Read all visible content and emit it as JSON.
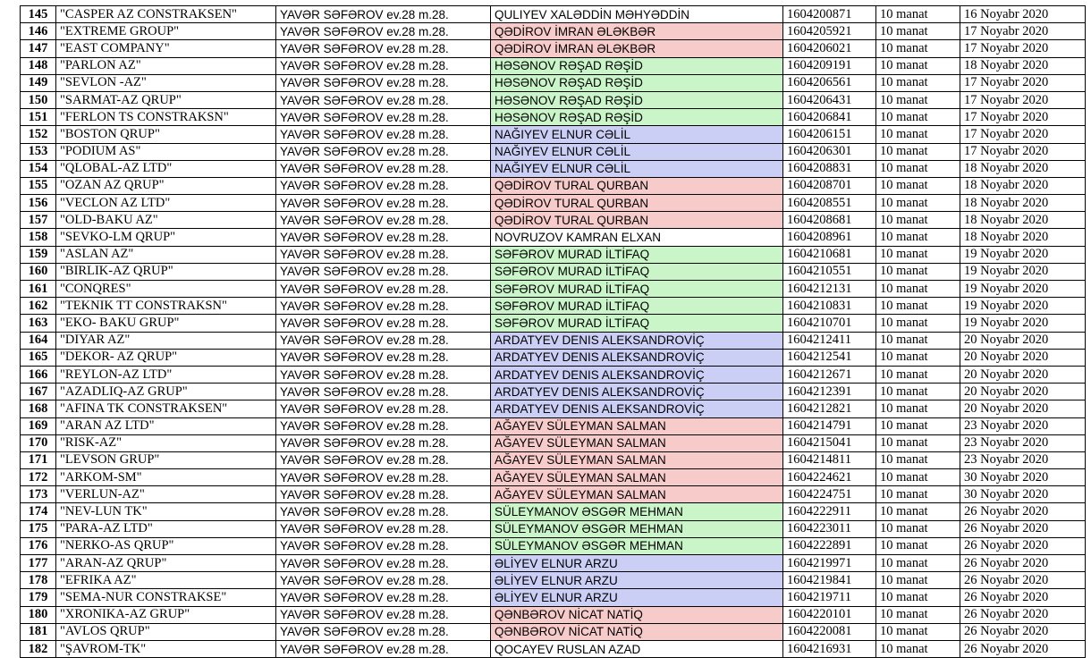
{
  "colors": {
    "red": "#f8cbcb",
    "green": "#c9f5c9",
    "blue": "#cccff5",
    "white": "#ffffff"
  },
  "rows": [
    {
      "n": "145",
      "company": "\"CASPER AZ CONSTRAKSEN\"",
      "address": "YAVƏR SƏFƏROV ev.28 m.28.",
      "person": "QULIYEV XALƏDDİN MƏHYƏDDİN",
      "code": "1604200871",
      "fee": "10 manat",
      "date": "16 Noyabr 2020",
      "color": "white"
    },
    {
      "n": "146",
      "company": "\"EXTREME GROUP\"",
      "address": "YAVƏR SƏFƏROV ev.28 m.28.",
      "person": "QƏDİROV İMRAN ƏLƏKBƏR",
      "code": "1604205921",
      "fee": "10 manat",
      "date": "17 Noyabr 2020",
      "color": "red"
    },
    {
      "n": "147",
      "company": "\"EAST COMPANY\"",
      "address": "YAVƏR SƏFƏROV ev.28 m.28.",
      "person": "QƏDİROV İMRAN ƏLƏKBƏR",
      "code": "1604206021",
      "fee": "10 manat",
      "date": "17 Noyabr 2020",
      "color": "red"
    },
    {
      "n": "148",
      "company": "\"PARLON AZ\"",
      "address": "YAVƏR SƏFƏROV ev.28 m.28.",
      "person": "HƏSƏNOV RƏŞAD RƏŞİD",
      "code": "1604209191",
      "fee": "10 manat",
      "date": "18 Noyabr 2020",
      "color": "green"
    },
    {
      "n": "149",
      "company": "\"SEVLON -AZ\"",
      "address": "YAVƏR SƏFƏROV ev.28 m.28.",
      "person": "HƏSƏNOV RƏŞAD RƏŞİD",
      "code": "1604206561",
      "fee": "10 manat",
      "date": "17 Noyabr 2020",
      "color": "green"
    },
    {
      "n": "150",
      "company": "\"SARMAT-AZ QRUP\"",
      "address": "YAVƏR SƏFƏROV ev.28 m.28.",
      "person": "HƏSƏNOV RƏŞAD RƏŞİD",
      "code": "1604206431",
      "fee": "10 manat",
      "date": "17 Noyabr 2020",
      "color": "green"
    },
    {
      "n": "151",
      "company": "\"FERLON TS CONSTRAKSN\"",
      "address": "YAVƏR SƏFƏROV ev.28 m.28.",
      "person": "HƏSƏNOV RƏŞAD RƏŞİD",
      "code": "1604206841",
      "fee": "10 manat",
      "date": "17 Noyabr 2020",
      "color": "green"
    },
    {
      "n": "152",
      "company": "\"BOSTON QRUP\"",
      "address": "YAVƏR SƏFƏROV ev.28 m.28.",
      "person": "NAĞIYEV ELNUR CƏLİL",
      "code": "1604206151",
      "fee": "10 manat",
      "date": "17 Noyabr 2020",
      "color": "blue"
    },
    {
      "n": "153",
      "company": "\"PODIUM AS\"",
      "address": "YAVƏR SƏFƏROV ev.28 m.28.",
      "person": "NAĞIYEV ELNUR CƏLİL",
      "code": "1604206301",
      "fee": "10 manat",
      "date": "17 Noyabr 2020",
      "color": "blue"
    },
    {
      "n": "154",
      "company": "\"QLOBAL-AZ LTD\"",
      "address": "YAVƏR SƏFƏROV ev.28 m.28.",
      "person": "NAĞIYEV ELNUR CƏLİL",
      "code": "1604208831",
      "fee": "10 manat",
      "date": "18 Noyabr 2020",
      "color": "blue"
    },
    {
      "n": "155",
      "company": "\"OZAN AZ QRUP\"",
      "address": "YAVƏR SƏFƏROV ev.28 m.28.",
      "person": "QƏDİROV TURAL QURBAN",
      "code": "1604208701",
      "fee": "10 manat",
      "date": "18 Noyabr 2020",
      "color": "red"
    },
    {
      "n": "156",
      "company": "\"VECLON AZ LTD\"",
      "address": "YAVƏR SƏFƏROV ev.28 m.28.",
      "person": "QƏDİROV TURAL QURBAN",
      "code": "1604208551",
      "fee": "10 manat",
      "date": "18 Noyabr 2020",
      "color": "red"
    },
    {
      "n": "157",
      "company": "\"OLD-BAKU AZ\"",
      "address": "YAVƏR SƏFƏROV ev.28 m.28.",
      "person": "QƏDİROV TURAL QURBAN",
      "code": "1604208681",
      "fee": "10 manat",
      "date": "18 Noyabr 2020",
      "color": "red"
    },
    {
      "n": "158",
      "company": "\"SEVKO-LM QRUP\"",
      "address": "YAVƏR SƏFƏROV ev.28 m.28.",
      "person": "NOVRUZOV KAMRAN ELXAN",
      "code": "1604208961",
      "fee": "10 manat",
      "date": "18 Noyabr 2020",
      "color": "white"
    },
    {
      "n": "159",
      "company": "\"ASLAN AZ\"",
      "address": "YAVƏR SƏFƏROV ev.28 m.28.",
      "person": "SƏFƏROV MURAD İLTİFAQ",
      "code": "1604210681",
      "fee": "10 manat",
      "date": "19 Noyabr 2020",
      "color": "green"
    },
    {
      "n": "160",
      "company": "\"BIRLIK-AZ QRUP\"",
      "address": "YAVƏR SƏFƏROV ev.28 m.28.",
      "person": "SƏFƏROV MURAD İLTİFAQ",
      "code": "1604210551",
      "fee": "10 manat",
      "date": "19 Noyabr 2020",
      "color": "green"
    },
    {
      "n": "161",
      "company": "\"CONQRES\"",
      "address": "YAVƏR SƏFƏROV ev.28 m.28.",
      "person": "SƏFƏROV MURAD İLTİFAQ",
      "code": "1604212131",
      "fee": "10 manat",
      "date": "19 Noyabr 2020",
      "color": "green"
    },
    {
      "n": "162",
      "company": "\"TEKNIK TT CONSTRAKSN\"",
      "address": "YAVƏR SƏFƏROV ev.28 m.28.",
      "person": "SƏFƏROV MURAD İLTİFAQ",
      "code": "1604210831",
      "fee": "10 manat",
      "date": "19 Noyabr 2020",
      "color": "green"
    },
    {
      "n": "163",
      "company": "\"EKO- BAKU GRUP\"",
      "address": "YAVƏR SƏFƏROV ev.28 m.28.",
      "person": "SƏFƏROV MURAD İLTİFAQ",
      "code": "1604210701",
      "fee": "10 manat",
      "date": "19 Noyabr 2020",
      "color": "green"
    },
    {
      "n": "164",
      "company": "\"DIYAR AZ\"",
      "address": "YAVƏR SƏFƏROV ev.28 m.28.",
      "person": "ARDATYEV DENIS ALEKSANDROVİÇ",
      "code": "1604212411",
      "fee": "10 manat",
      "date": "20 Noyabr 2020",
      "color": "blue"
    },
    {
      "n": "165",
      "company": "\"DEKOR- AZ QRUP\"",
      "address": "YAVƏR SƏFƏROV ev.28 m.28.",
      "person": "ARDATYEV DENIS ALEKSANDROVİÇ",
      "code": "1604212541",
      "fee": "10 manat",
      "date": "20 Noyabr 2020",
      "color": "blue"
    },
    {
      "n": "166",
      "company": "\"REYLON-AZ LTD\"",
      "address": "YAVƏR SƏFƏROV ev.28 m.28.",
      "person": "ARDATYEV DENIS ALEKSANDROVİÇ",
      "code": "1604212671",
      "fee": "10 manat",
      "date": "20 Noyabr 2020",
      "color": "blue"
    },
    {
      "n": "167",
      "company": "\"AZADLIQ-AZ GRUP\"",
      "address": "YAVƏR SƏFƏROV ev.28 m.28.",
      "person": "ARDATYEV DENIS ALEKSANDROVİÇ",
      "code": "1604212391",
      "fee": "10 manat",
      "date": "20 Noyabr 2020",
      "color": "blue"
    },
    {
      "n": "168",
      "company": "\"AFINA TK CONSTRAKSEN\"",
      "address": "YAVƏR SƏFƏROV ev.28 m.28.",
      "person": "ARDATYEV DENIS ALEKSANDROVİÇ",
      "code": "1604212821",
      "fee": "10 manat",
      "date": "20 Noyabr 2020",
      "color": "blue"
    },
    {
      "n": "169",
      "company": "\"ARAN AZ LTD\"",
      "address": "YAVƏR SƏFƏROV ev.28 m.28.",
      "person": "AĞAYEV SÜLEYMAN SALMAN",
      "code": "1604214791",
      "fee": "10 manat",
      "date": "23 Noyabr 2020",
      "color": "red"
    },
    {
      "n": "170",
      "company": "\"RISK-AZ\"",
      "address": "YAVƏR SƏFƏROV ev.28 m.28.",
      "person": "AĞAYEV SÜLEYMAN SALMAN",
      "code": "1604215041",
      "fee": "10 manat",
      "date": "23 Noyabr 2020",
      "color": "red"
    },
    {
      "n": "171",
      "company": "\"LEVSON GRUP\"",
      "address": "YAVƏR SƏFƏROV ev.28 m.28.",
      "person": "AĞAYEV SÜLEYMAN SALMAN",
      "code": "1604214811",
      "fee": "10 manat",
      "date": "23 Noyabr 2020",
      "color": "red"
    },
    {
      "n": "172",
      "company": "\"ARKOM-SM\"",
      "address": "YAVƏR SƏFƏROV ev.28 m.28.",
      "person": "AĞAYEV SÜLEYMAN SALMAN",
      "code": "1604224621",
      "fee": "10 manat",
      "date": "30 Noyabr 2020",
      "color": "red"
    },
    {
      "n": "173",
      "company": "\"VERLUN-AZ\"",
      "address": "YAVƏR SƏFƏROV ev.28 m.28.",
      "person": "AĞAYEV SÜLEYMAN SALMAN",
      "code": "1604224751",
      "fee": "10 manat",
      "date": "30 Noyabr 2020",
      "color": "red"
    },
    {
      "n": "174",
      "company": "\"NEV-LUN TK\"",
      "address": "YAVƏR SƏFƏROV ev.28 m.28.",
      "person": "SÜLEYMANOV ƏSGƏR MEHMAN",
      "code": "1604222911",
      "fee": "10 manat",
      "date": "26 Noyabr 2020",
      "color": "green"
    },
    {
      "n": "175",
      "company": "\"PARA-AZ LTD\"",
      "address": "YAVƏR SƏFƏROV ev.28 m.28.",
      "person": "SÜLEYMANOV ƏSGƏR MEHMAN",
      "code": "1604223011",
      "fee": "10 manat",
      "date": "26 Noyabr 2020",
      "color": "green"
    },
    {
      "n": "176",
      "company": "\"NERKO-AS QRUP\"",
      "address": "YAVƏR SƏFƏROV ev.28 m.28.",
      "person": "SÜLEYMANOV ƏSGƏR MEHMAN",
      "code": "1604222891",
      "fee": "10 manat",
      "date": "26 Noyabr 2020",
      "color": "green"
    },
    {
      "n": "177",
      "company": "\"ARAN-AZ QRUP\"",
      "address": "YAVƏR SƏFƏROV ev.28 m.28.",
      "person": "ƏLİYEV ELNUR ARZU",
      "code": "1604219971",
      "fee": "10 manat",
      "date": "26 Noyabr 2020",
      "color": "blue"
    },
    {
      "n": "178",
      "company": "\"EFRIKA AZ\"",
      "address": "YAVƏR SƏFƏROV ev.28 m.28.",
      "person": "ƏLİYEV ELNUR ARZU",
      "code": "1604219841",
      "fee": "10 manat",
      "date": "26 Noyabr 2020",
      "color": "blue"
    },
    {
      "n": "179",
      "company": "\"SEMA-NUR CONSTRAKSE\"",
      "address": "YAVƏR SƏFƏROV ev.28 m.28.",
      "person": "ƏLİYEV ELNUR ARZU",
      "code": "1604219711",
      "fee": "10 manat",
      "date": "26 Noyabr 2020",
      "color": "blue"
    },
    {
      "n": "180",
      "company": "\"XRONIKA-AZ GRUP\"",
      "address": "YAVƏR SƏFƏROV ev.28 m.28.",
      "person": "QƏNBƏROV NİCAT NATİQ",
      "code": "1604220101",
      "fee": "10 manat",
      "date": "26 Noyabr 2020",
      "color": "red"
    },
    {
      "n": "181",
      "company": "\"AVLOS QRUP\"",
      "address": "YAVƏR SƏFƏROV ev.28 m.28.",
      "person": "QƏNBƏROV NİCAT NATİQ",
      "code": "1604220081",
      "fee": "10 manat",
      "date": "26 Noyabr 2020",
      "color": "red"
    },
    {
      "n": "182",
      "company": "\"ŞAVROM-TK\"",
      "address": "YAVƏR SƏFƏROV ev.28 m.28.",
      "person": "QOCAYEV RUSLAN AZAD",
      "code": "1604216931",
      "fee": "10 manat",
      "date": "26 Noyabr 2020",
      "color": "white"
    }
  ]
}
